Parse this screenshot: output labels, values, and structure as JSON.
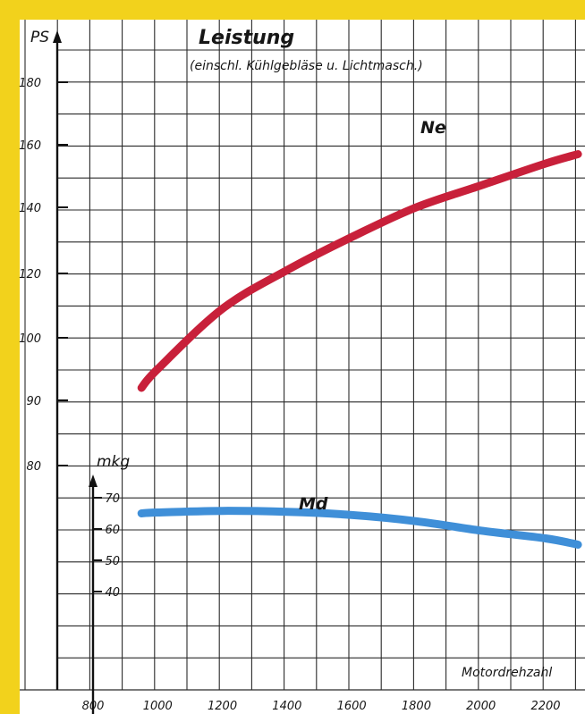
{
  "chart_data": {
    "type": "line",
    "title": "Leistung",
    "subtitle": "(einschl. Kühlgebläse u. Lichtmasch.)",
    "xlabel": "Motordrehzahl",
    "xlim": [
      800,
      2300
    ],
    "x_ticks": [
      "800",
      "1000",
      "1200",
      "1400",
      "1600",
      "1800",
      "2000",
      "2200"
    ],
    "axes": [
      {
        "id": "ps",
        "unit": "PS",
        "ticks": [
          "80",
          "90",
          "100",
          "120",
          "140",
          "160",
          "180"
        ],
        "tick_values": [
          80,
          90,
          100,
          120,
          140,
          160,
          180
        ]
      },
      {
        "id": "mkg",
        "unit": "mkg",
        "ticks": [
          "40",
          "50",
          "60",
          "70"
        ],
        "tick_values": [
          40,
          50,
          60,
          70
        ]
      }
    ],
    "series": [
      {
        "name": "Ne",
        "axis": "ps",
        "color": "#c8203a",
        "x": [
          950,
          1000,
          1200,
          1400,
          1600,
          1800,
          2000,
          2200,
          2300
        ],
        "y": [
          92,
          95,
          109,
          121,
          131,
          140,
          147,
          154,
          157
        ]
      },
      {
        "name": "Md",
        "axis": "mkg",
        "color": "#3f8fd8",
        "x": [
          950,
          1000,
          1200,
          1400,
          1600,
          1800,
          2000,
          2200,
          2300
        ],
        "y": [
          65,
          65.3,
          65.8,
          65.5,
          64.5,
          62.5,
          59.5,
          57,
          55
        ]
      }
    ]
  }
}
